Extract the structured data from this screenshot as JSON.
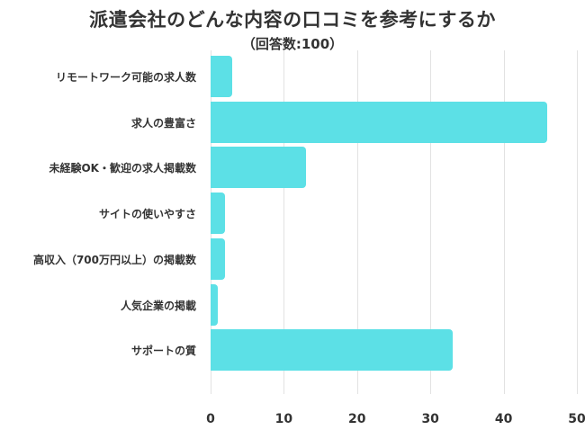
{
  "chart_data": {
    "type": "bar",
    "orientation": "horizontal",
    "title": "派遣会社のどんな内容の口コミを参考にするか",
    "subtitle": "（回答数:100）",
    "categories": [
      "リモートワーク可能の求人数",
      "求人の豊富さ",
      "未経験OK・歓迎の求人掲載数",
      "サイトの使いやすさ",
      "高収入（700万円以上）の掲載数",
      "人気企業の掲載",
      "サポートの質"
    ],
    "values": [
      3,
      46,
      13,
      2,
      2,
      1,
      33
    ],
    "xlabel": "",
    "ylabel": "",
    "xlim": [
      0,
      50
    ],
    "xticks": [
      "0",
      "10",
      "20",
      "30",
      "40",
      "50"
    ],
    "grid": true,
    "legend": null,
    "bar_color": "#5ce0e6"
  }
}
